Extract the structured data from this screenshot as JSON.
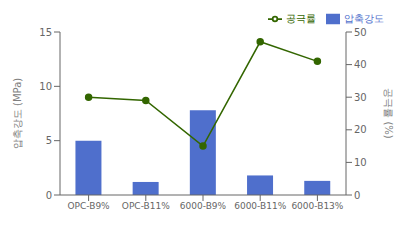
{
  "chart_data": {
    "type": "bar",
    "categories": [
      "OPC-B9%",
      "OPC-B11%",
      "6000-B9%",
      "6000-B11%",
      "6000-B13%"
    ],
    "series": [
      {
        "name": "압축강도",
        "type": "bar",
        "color": "#4f6fcc",
        "values": [
          5.0,
          1.2,
          7.8,
          1.8,
          1.3
        ]
      },
      {
        "name": "공극률",
        "type": "line",
        "color": "#336600",
        "marker": "circle",
        "axis": "y2",
        "values": [
          30,
          29,
          15,
          47,
          41
        ]
      }
    ],
    "y_label": "압축강도 (MPa)",
    "y2_label": "공극률 (%)",
    "ylim": [
      0,
      15
    ],
    "yticks": [
      0,
      5,
      10,
      15
    ],
    "y2lim": [
      0,
      50
    ],
    "y2ticks": [
      0,
      10,
      20,
      30,
      40,
      50
    ],
    "legend": "upper right",
    "grid": false
  }
}
